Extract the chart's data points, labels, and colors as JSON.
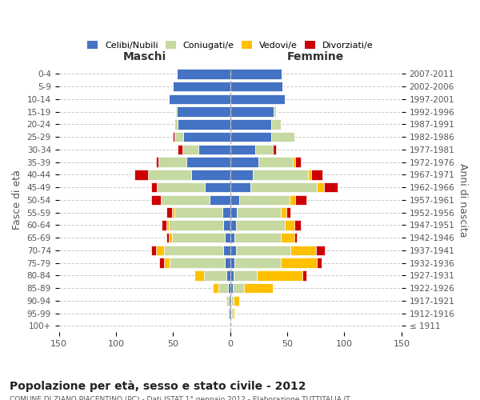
{
  "age_groups": [
    "100+",
    "95-99",
    "90-94",
    "85-89",
    "80-84",
    "75-79",
    "70-74",
    "65-69",
    "60-64",
    "55-59",
    "50-54",
    "45-49",
    "40-44",
    "35-39",
    "30-34",
    "25-29",
    "20-24",
    "15-19",
    "10-14",
    "5-9",
    "0-4"
  ],
  "birth_years": [
    "≤ 1911",
    "1912-1916",
    "1917-1921",
    "1922-1926",
    "1927-1931",
    "1932-1936",
    "1937-1941",
    "1942-1946",
    "1947-1951",
    "1952-1956",
    "1957-1961",
    "1962-1966",
    "1967-1971",
    "1972-1976",
    "1977-1981",
    "1982-1986",
    "1987-1991",
    "1992-1996",
    "1997-2001",
    "2002-2006",
    "2007-2011"
  ],
  "maschi": {
    "celibi": [
      0,
      1,
      1,
      2,
      3,
      5,
      6,
      5,
      6,
      7,
      18,
      22,
      34,
      38,
      28,
      41,
      46,
      47,
      54,
      50,
      47
    ],
    "coniugati": [
      0,
      1,
      2,
      8,
      20,
      48,
      52,
      46,
      48,
      42,
      43,
      42,
      38,
      25,
      14,
      8,
      3,
      1,
      0,
      0,
      0
    ],
    "vedovi": [
      0,
      0,
      1,
      5,
      8,
      5,
      7,
      3,
      2,
      2,
      0,
      0,
      0,
      0,
      0,
      0,
      0,
      0,
      0,
      0,
      0
    ],
    "divorziati": [
      0,
      0,
      0,
      0,
      0,
      4,
      4,
      2,
      4,
      5,
      8,
      5,
      12,
      2,
      4,
      1,
      0,
      0,
      0,
      0,
      0
    ]
  },
  "femmine": {
    "nubili": [
      0,
      1,
      1,
      2,
      3,
      4,
      5,
      4,
      5,
      6,
      8,
      18,
      20,
      25,
      22,
      36,
      36,
      38,
      48,
      46,
      45
    ],
    "coniugate": [
      0,
      1,
      2,
      10,
      20,
      40,
      48,
      40,
      43,
      38,
      44,
      58,
      48,
      30,
      15,
      20,
      8,
      2,
      0,
      0,
      0
    ],
    "vedove": [
      0,
      2,
      5,
      25,
      40,
      32,
      22,
      12,
      8,
      5,
      5,
      6,
      3,
      2,
      0,
      0,
      0,
      0,
      0,
      0,
      0
    ],
    "divorziate": [
      0,
      0,
      0,
      0,
      4,
      4,
      8,
      2,
      6,
      4,
      10,
      12,
      10,
      5,
      3,
      0,
      0,
      0,
      0,
      0,
      0
    ]
  },
  "colors": {
    "celibi": "#4472c4",
    "coniugati": "#c5d9a0",
    "vedovi": "#ffc000",
    "divorziati": "#cc0000"
  },
  "xlim": 150,
  "title": "Popolazione per età, sesso e stato civile - 2012",
  "subtitle": "COMUNE DI ZIANO PIACENTINO (PC) - Dati ISTAT 1° gennaio 2012 - Elaborazione TUTTITALIA.IT",
  "ylabel_left": "Fasce di età",
  "ylabel_right": "Anni di nascita",
  "legend_labels": [
    "Celibi/Nubili",
    "Coniugati/e",
    "Vedovi/e",
    "Divorziati/e"
  ],
  "maschi_label": "Maschi",
  "femmine_label": "Femmine"
}
